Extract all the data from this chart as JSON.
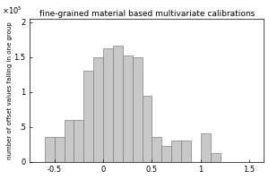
{
  "title": "fine-grained material based multivariate calibrations",
  "ylabel": "number of offset values falling in one group",
  "xlabel": "",
  "bar_color": "#c8c8c8",
  "bar_edge_color": "#808080",
  "xlim": [
    -0.75,
    1.65
  ],
  "ytick_scale": 100000,
  "yticks": [
    0,
    0.5,
    1.0,
    1.5,
    2.0
  ],
  "xticks": [
    -0.5,
    0.0,
    0.5,
    1.0,
    1.5
  ],
  "xtick_labels": [
    "-0.5",
    "0",
    "0.5",
    "1",
    "1.5"
  ],
  "bin_centers": [
    -0.55,
    -0.45,
    -0.35,
    -0.25,
    -0.15,
    -0.05,
    0.05,
    0.15,
    0.25,
    0.35,
    0.45,
    0.55,
    0.65,
    0.75,
    0.85,
    0.95,
    1.05,
    1.15,
    1.25,
    1.35,
    1.45
  ],
  "bin_heights": [
    35000,
    35000,
    60000,
    60000,
    130000,
    150000,
    163000,
    167000,
    153000,
    150000,
    95000,
    35000,
    22000,
    30000,
    30000,
    0,
    40000,
    12000,
    0,
    0,
    0
  ],
  "bin_width": 0.1,
  "figsize": [
    3.0,
    2.0
  ],
  "dpi": 100
}
